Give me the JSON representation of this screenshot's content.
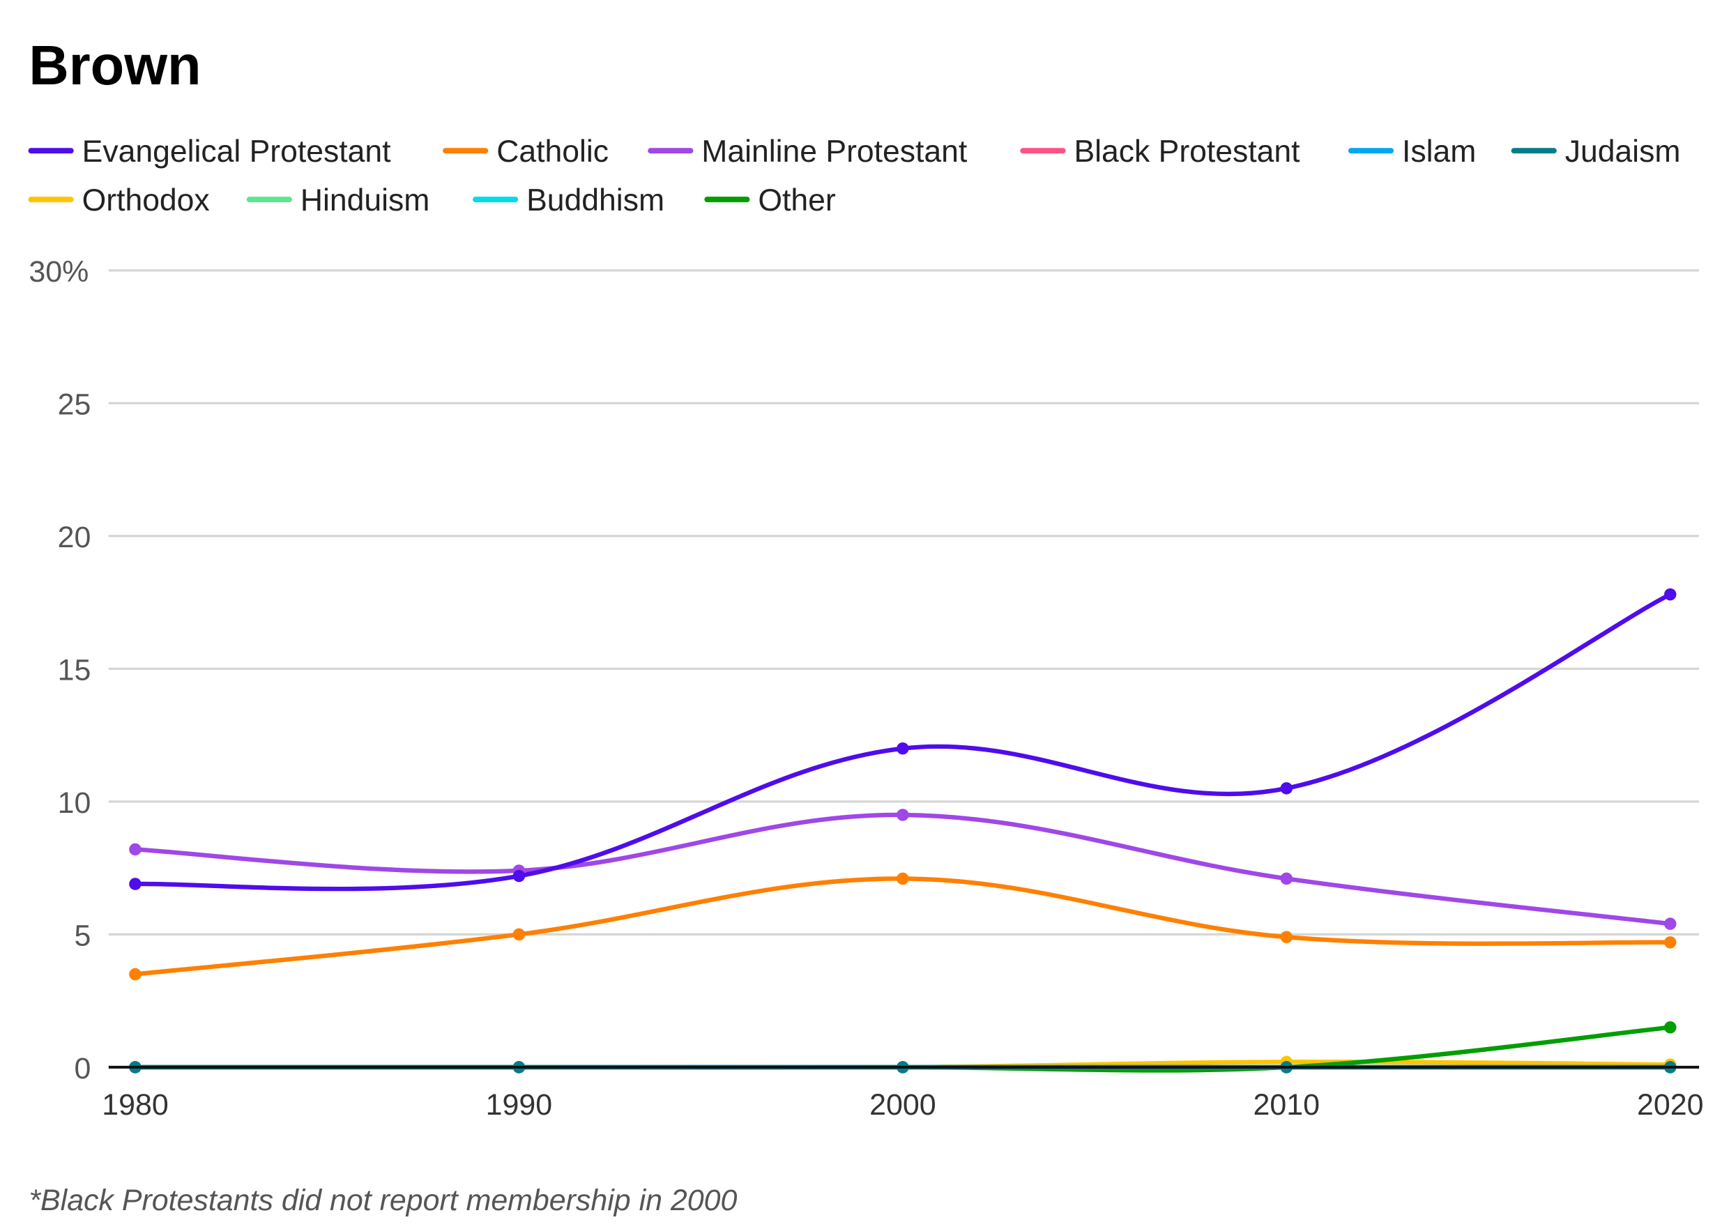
{
  "chart_data": {
    "type": "line",
    "title": "Brown",
    "footnote": "*Black Protestants did not report membership in 2000",
    "x": [
      1980,
      1990,
      2000,
      2010,
      2020
    ],
    "x_tick_labels": [
      "1980",
      "1990",
      "2000",
      "2010",
      "2020"
    ],
    "y_ticks": [
      0,
      5,
      10,
      15,
      20,
      25,
      30
    ],
    "y_tick_labels": [
      "0",
      "5",
      "10",
      "15",
      "20",
      "25",
      "30%"
    ],
    "ylim": [
      0,
      30
    ],
    "grid": true,
    "legend_placement": "top",
    "series": [
      {
        "name": "Evangelical Protestant",
        "color": "#4f0ced",
        "values": [
          6.9,
          7.2,
          12.0,
          10.5,
          17.8
        ]
      },
      {
        "name": "Catholic",
        "color": "#ff8000",
        "values": [
          3.5,
          5.0,
          7.1,
          4.9,
          4.7
        ]
      },
      {
        "name": "Mainline Protestant",
        "color": "#a047e8",
        "values": [
          8.2,
          7.4,
          9.5,
          7.1,
          5.4
        ]
      },
      {
        "name": "Black Protestant",
        "color": "#ff5185",
        "values": [
          0,
          0,
          null,
          0,
          0
        ]
      },
      {
        "name": "Islam",
        "color": "#00a8f0",
        "values": [
          0,
          0,
          0,
          0,
          0
        ]
      },
      {
        "name": "Judaism",
        "color": "#007d8a",
        "values": [
          0,
          0,
          0,
          0,
          0
        ]
      },
      {
        "name": "Orthodox",
        "color": "#ffc400",
        "values": [
          0,
          0,
          0,
          0.2,
          0.1
        ]
      },
      {
        "name": "Hinduism",
        "color": "#5ce68f",
        "values": [
          0,
          0,
          0,
          0,
          0
        ]
      },
      {
        "name": "Buddhism",
        "color": "#00dde6",
        "values": [
          0,
          0,
          0,
          0,
          0
        ]
      },
      {
        "name": "Other",
        "color": "#009e00",
        "values": [
          0,
          0,
          0,
          0,
          1.5
        ]
      }
    ]
  }
}
